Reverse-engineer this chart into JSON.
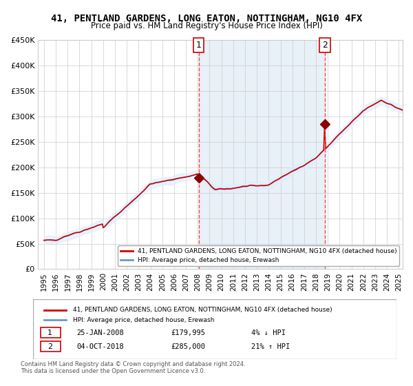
{
  "title": "41, PENTLAND GARDENS, LONG EATON, NOTTINGHAM, NG10 4FX",
  "subtitle": "Price paid vs. HM Land Registry's House Price Index (HPI)",
  "xlabel": "",
  "ylabel": "",
  "ylim": [
    0,
    450000
  ],
  "yticks": [
    0,
    50000,
    100000,
    150000,
    200000,
    250000,
    300000,
    350000,
    400000,
    450000
  ],
  "ytick_labels": [
    "£0",
    "£50K",
    "£100K",
    "£150K",
    "£200K",
    "£250K",
    "£300K",
    "£350K",
    "£400K",
    "£450K"
  ],
  "xlim_start": 1994.5,
  "xlim_end": 2025.3,
  "xticks": [
    1995,
    1996,
    1997,
    1998,
    1999,
    2000,
    2001,
    2002,
    2003,
    2004,
    2005,
    2006,
    2007,
    2008,
    2009,
    2010,
    2011,
    2012,
    2013,
    2014,
    2015,
    2016,
    2017,
    2018,
    2019,
    2020,
    2021,
    2022,
    2023,
    2024,
    2025
  ],
  "sale1_date": 2008.07,
  "sale1_price": 179995,
  "sale1_label": "1",
  "sale2_date": 2018.75,
  "sale2_price": 285000,
  "sale2_label": "2",
  "hpi_line_color": "#6699cc",
  "hpi_fill_color": "#ddeeff",
  "house_line_color": "#cc0000",
  "dot_color": "#880000",
  "vline_color": "#ff4444",
  "legend_house": "41, PENTLAND GARDENS, LONG EATON, NOTTINGHAM, NG10 4FX (detached house)",
  "legend_hpi": "HPI: Average price, detached house, Erewash",
  "footnote": "Contains HM Land Registry data © Crown copyright and database right 2024.\nThis data is licensed under the Open Government Licence v3.0.",
  "table_row1": "25-JAN-2008          £179,995          4% ↓ HPI",
  "table_row2": "04-OCT-2018          £285,000          21% ↑ HPI",
  "background_color": "#ffffff",
  "grid_color": "#cccccc"
}
